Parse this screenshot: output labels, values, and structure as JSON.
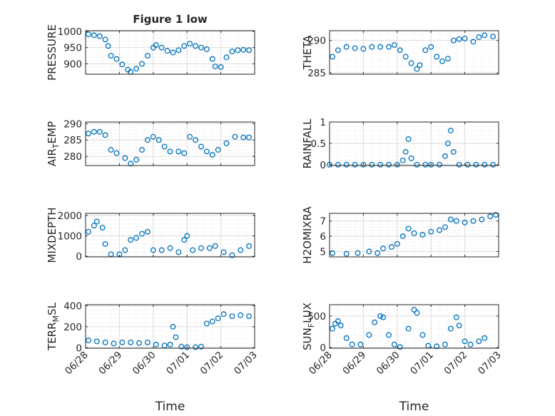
{
  "figure_title": "Figure 1 low",
  "colors": {
    "marker": "#0072BD",
    "axis": "#262626",
    "grid": "#dcdcdc"
  },
  "x_tick_labels": [
    "06/28",
    "06/29",
    "06/30",
    "07/01",
    "07/02",
    "07/03"
  ],
  "chart_data": [
    {
      "type": "scatter",
      "panel": "left-1",
      "title": "Figure 1 low",
      "ylabel_main": "PRESSURE",
      "ylabel_sub": "",
      "ylabel_tail": "",
      "xlim": [
        "06/28",
        "07/03"
      ],
      "ylim": [
        868,
        1002
      ],
      "yticks": [
        900,
        950,
        1000
      ],
      "ytick_labels": [
        "900",
        "950",
        "1000"
      ],
      "show_xticklabels": false,
      "xlabel": "",
      "grid": true,
      "minor_grid": true,
      "points": [
        [
          "06/28 02:00",
          991
        ],
        [
          "06/28 06:00",
          988
        ],
        [
          "06/28 10:00",
          985
        ],
        [
          "06/28 14:00",
          975
        ],
        [
          "06/28 16:00",
          955
        ],
        [
          "06/28 18:00",
          925
        ],
        [
          "06/28 22:00",
          915
        ],
        [
          "06/29 02:00",
          898
        ],
        [
          "06/29 06:00",
          882
        ],
        [
          "06/29 08:00",
          875
        ],
        [
          "06/29 12:00",
          885
        ],
        [
          "06/29 16:00",
          900
        ],
        [
          "06/29 20:00",
          925
        ],
        [
          "06/30 00:00",
          950
        ],
        [
          "06/30 02:00",
          958
        ],
        [
          "06/30 06:00",
          950
        ],
        [
          "06/30 10:00",
          940
        ],
        [
          "06/30 14:00",
          935
        ],
        [
          "06/30 18:00",
          942
        ],
        [
          "06/30 22:00",
          955
        ],
        [
          "07/01 02:00",
          962
        ],
        [
          "07/01 06:00",
          955
        ],
        [
          "07/01 10:00",
          950
        ],
        [
          "07/01 14:00",
          945
        ],
        [
          "07/01 18:00",
          915
        ],
        [
          "07/01 20:00",
          892
        ],
        [
          "07/02 00:00",
          890
        ],
        [
          "07/02 04:00",
          920
        ],
        [
          "07/02 08:00",
          938
        ],
        [
          "07/02 12:00",
          942
        ],
        [
          "07/02 16:00",
          943
        ],
        [
          "07/02 20:00",
          942
        ]
      ]
    },
    {
      "type": "scatter",
      "panel": "right-1",
      "title": "",
      "ylabel_main": "THETA",
      "ylabel_sub": "",
      "ylabel_tail": "",
      "xlim": [
        "06/28",
        "07/03"
      ],
      "ylim": [
        284.8,
        291.5
      ],
      "yticks": [
        285,
        290
      ],
      "ytick_labels": [
        "285",
        "290"
      ],
      "show_xticklabels": false,
      "xlabel": "",
      "grid": true,
      "minor_grid": true,
      "points": [
        [
          "06/28 02:00",
          287.5
        ],
        [
          "06/28 06:00",
          288.5
        ],
        [
          "06/28 12:00",
          289
        ],
        [
          "06/28 18:00",
          288.8
        ],
        [
          "06/29 00:00",
          288.7
        ],
        [
          "06/29 06:00",
          289
        ],
        [
          "06/29 12:00",
          289
        ],
        [
          "06/29 18:00",
          289
        ],
        [
          "06/29 22:00",
          289.3
        ],
        [
          "06/30 02:00",
          288.5
        ],
        [
          "06/30 06:00",
          287.5
        ],
        [
          "06/30 10:00",
          286.5
        ],
        [
          "06/30 14:00",
          285.6
        ],
        [
          "06/30 16:00",
          286.2
        ],
        [
          "06/30 20:00",
          288.5
        ],
        [
          "07/01 00:00",
          289
        ],
        [
          "07/01 04:00",
          287.5
        ],
        [
          "07/01 08:00",
          286.8
        ],
        [
          "07/01 12:00",
          287.2
        ],
        [
          "07/01 16:00",
          290
        ],
        [
          "07/01 20:00",
          290.2
        ],
        [
          "07/02 00:00",
          290.3
        ],
        [
          "07/02 06:00",
          289.8
        ],
        [
          "07/02 10:00",
          290.5
        ],
        [
          "07/02 14:00",
          290.8
        ],
        [
          "07/02 20:00",
          290.6
        ]
      ]
    },
    {
      "type": "scatter",
      "panel": "left-2",
      "title": "",
      "ylabel_main": "AIR",
      "ylabel_sub": "T",
      "ylabel_tail": "EMP",
      "xlim": [
        "06/28",
        "07/03"
      ],
      "ylim": [
        277.2,
        290.5
      ],
      "yticks": [
        280,
        285,
        290
      ],
      "ytick_labels": [
        "280",
        "285",
        "290"
      ],
      "show_xticklabels": false,
      "xlabel": "",
      "grid": true,
      "minor_grid": true,
      "points": [
        [
          "06/28 02:00",
          287
        ],
        [
          "06/28 06:00",
          287.5
        ],
        [
          "06/28 10:00",
          287.5
        ],
        [
          "06/28 14:00",
          286.5
        ],
        [
          "06/28 18:00",
          282
        ],
        [
          "06/28 22:00",
          281
        ],
        [
          "06/29 04:00",
          279.5
        ],
        [
          "06/29 08:00",
          277.8
        ],
        [
          "06/29 12:00",
          279
        ],
        [
          "06/29 16:00",
          282
        ],
        [
          "06/29 20:00",
          285
        ],
        [
          "06/30 00:00",
          286
        ],
        [
          "06/30 04:00",
          285
        ],
        [
          "06/30 08:00",
          283
        ],
        [
          "06/30 12:00",
          281.5
        ],
        [
          "06/30 18:00",
          281.5
        ],
        [
          "06/30 22:00",
          281
        ],
        [
          "07/01 02:00",
          286
        ],
        [
          "07/01 06:00",
          285
        ],
        [
          "07/01 10:00",
          283
        ],
        [
          "07/01 14:00",
          281.5
        ],
        [
          "07/01 18:00",
          280.5
        ],
        [
          "07/01 22:00",
          282
        ],
        [
          "07/02 04:00",
          284
        ],
        [
          "07/02 10:00",
          286
        ],
        [
          "07/02 16:00",
          285.8
        ],
        [
          "07/02 20:00",
          285.8
        ]
      ]
    },
    {
      "type": "scatter",
      "panel": "right-2",
      "title": "",
      "ylabel_main": "RAINFALL",
      "ylabel_sub": "",
      "ylabel_tail": "",
      "xlim": [
        "06/28",
        "07/03"
      ],
      "ylim": [
        -0.02,
        1.0
      ],
      "yticks": [
        0,
        0.5,
        1
      ],
      "ytick_labels": [
        "0",
        "0.5",
        "1"
      ],
      "show_xticklabels": false,
      "xlabel": "",
      "grid": true,
      "minor_grid": true,
      "points": [
        [
          "06/28 00:00",
          0
        ],
        [
          "06/28 06:00",
          0
        ],
        [
          "06/28 12:00",
          0
        ],
        [
          "06/28 18:00",
          0
        ],
        [
          "06/29 00:00",
          0
        ],
        [
          "06/29 06:00",
          0
        ],
        [
          "06/29 12:00",
          0
        ],
        [
          "06/29 18:00",
          0
        ],
        [
          "06/30 00:00",
          0
        ],
        [
          "06/30 04:00",
          0.1
        ],
        [
          "06/30 06:00",
          0.3
        ],
        [
          "06/30 08:00",
          0.6
        ],
        [
          "06/30 10:00",
          0.15
        ],
        [
          "06/30 14:00",
          0
        ],
        [
          "06/30 20:00",
          0
        ],
        [
          "07/01 00:00",
          0
        ],
        [
          "07/01 06:00",
          0
        ],
        [
          "07/01 10:00",
          0.2
        ],
        [
          "07/01 12:00",
          0.5
        ],
        [
          "07/01 14:00",
          0.8
        ],
        [
          "07/01 16:00",
          0.3
        ],
        [
          "07/01 20:00",
          0
        ],
        [
          "07/02 02:00",
          0
        ],
        [
          "07/02 08:00",
          0
        ],
        [
          "07/02 14:00",
          0
        ],
        [
          "07/02 20:00",
          0
        ]
      ]
    },
    {
      "type": "scatter",
      "panel": "left-3",
      "title": "",
      "ylabel_main": "MIXDEPTH",
      "ylabel_sub": "",
      "ylabel_tail": "",
      "xlim": [
        "06/28",
        "07/03"
      ],
      "ylim": [
        -30,
        2100
      ],
      "yticks": [
        0,
        1000,
        2000
      ],
      "ytick_labels": [
        "0",
        "1000",
        "2000"
      ],
      "show_xticklabels": false,
      "xlabel": "",
      "grid": true,
      "minor_grid": true,
      "points": [
        [
          "06/28 02:00",
          1200
        ],
        [
          "06/28 06:00",
          1500
        ],
        [
          "06/28 08:00",
          1700
        ],
        [
          "06/28 12:00",
          1400
        ],
        [
          "06/28 14:00",
          600
        ],
        [
          "06/28 18:00",
          100
        ],
        [
          "06/29 00:00",
          100
        ],
        [
          "06/29 04:00",
          300
        ],
        [
          "06/29 08:00",
          800
        ],
        [
          "06/29 12:00",
          900
        ],
        [
          "06/29 16:00",
          1100
        ],
        [
          "06/29 20:00",
          1200
        ],
        [
          "06/30 00:00",
          300
        ],
        [
          "06/30 06:00",
          300
        ],
        [
          "06/30 12:00",
          400
        ],
        [
          "06/30 18:00",
          200
        ],
        [
          "06/30 22:00",
          800
        ],
        [
          "07/01 00:00",
          1000
        ],
        [
          "07/01 04:00",
          300
        ],
        [
          "07/01 10:00",
          400
        ],
        [
          "07/01 16:00",
          400
        ],
        [
          "07/01 20:00",
          500
        ],
        [
          "07/02 02:00",
          200
        ],
        [
          "07/02 08:00",
          50
        ],
        [
          "07/02 14:00",
          300
        ],
        [
          "07/02 20:00",
          500
        ]
      ]
    },
    {
      "type": "scatter",
      "panel": "right-3",
      "title": "",
      "ylabel_main": "H2OMIXRA",
      "ylabel_sub": "",
      "ylabel_tail": "",
      "xlim": [
        "06/28",
        "07/03"
      ],
      "ylim": [
        4.65,
        7.5
      ],
      "yticks": [
        5,
        6,
        7
      ],
      "ytick_labels": [
        "5",
        "6",
        "7"
      ],
      "show_xticklabels": false,
      "xlabel": "",
      "grid": true,
      "minor_grid": true,
      "points": [
        [
          "06/28 02:00",
          4.9
        ],
        [
          "06/28 12:00",
          4.85
        ],
        [
          "06/28 20:00",
          4.9
        ],
        [
          "06/29 04:00",
          5.0
        ],
        [
          "06/29 10:00",
          4.9
        ],
        [
          "06/29 14:00",
          5.2
        ],
        [
          "06/29 20:00",
          5.3
        ],
        [
          "06/30 00:00",
          5.5
        ],
        [
          "06/30 04:00",
          6.0
        ],
        [
          "06/30 08:00",
          6.5
        ],
        [
          "06/30 12:00",
          6.2
        ],
        [
          "06/30 18:00",
          6.1
        ],
        [
          "07/01 00:00",
          6.3
        ],
        [
          "07/01 06:00",
          6.4
        ],
        [
          "07/01 10:00",
          6.6
        ],
        [
          "07/01 14:00",
          7.1
        ],
        [
          "07/01 18:00",
          7.0
        ],
        [
          "07/02 00:00",
          6.9
        ],
        [
          "07/02 06:00",
          7.0
        ],
        [
          "07/02 12:00",
          7.1
        ],
        [
          "07/02 18:00",
          7.3
        ],
        [
          "07/02 22:00",
          7.4
        ]
      ]
    },
    {
      "type": "scatter",
      "panel": "left-4",
      "title": "",
      "ylabel_main": "TERR",
      "ylabel_sub": "M",
      "ylabel_tail": "SL",
      "xlim": [
        "06/28",
        "07/03"
      ],
      "ylim": [
        -5,
        410
      ],
      "yticks": [
        0,
        200,
        400
      ],
      "ytick_labels": [
        "0",
        "200",
        "400"
      ],
      "show_xticklabels": true,
      "xlabel": "Time",
      "grid": true,
      "minor_grid": true,
      "points": [
        [
          "06/28 02:00",
          70
        ],
        [
          "06/28 08:00",
          60
        ],
        [
          "06/28 14:00",
          50
        ],
        [
          "06/28 20:00",
          40
        ],
        [
          "06/29 02:00",
          50
        ],
        [
          "06/29 08:00",
          50
        ],
        [
          "06/29 14:00",
          45
        ],
        [
          "06/29 20:00",
          50
        ],
        [
          "06/30 02:00",
          30
        ],
        [
          "06/30 08:00",
          20
        ],
        [
          "06/30 12:00",
          30
        ],
        [
          "06/30 14:00",
          200
        ],
        [
          "06/30 16:00",
          100
        ],
        [
          "06/30 20:00",
          10
        ],
        [
          "07/01 00:00",
          5
        ],
        [
          "07/01 06:00",
          5
        ],
        [
          "07/01 10:00",
          10
        ],
        [
          "07/01 14:00",
          230
        ],
        [
          "07/01 18:00",
          250
        ],
        [
          "07/01 22:00",
          280
        ],
        [
          "07/02 02:00",
          320
        ],
        [
          "07/02 08:00",
          300
        ],
        [
          "07/02 14:00",
          310
        ],
        [
          "07/02 20:00",
          300
        ]
      ]
    },
    {
      "type": "scatter",
      "panel": "right-4",
      "title": "",
      "ylabel_main": "SUN",
      "ylabel_sub": "F",
      "ylabel_tail": "LUX",
      "xlim": [
        "06/28",
        "07/03"
      ],
      "ylim": [
        -10,
        680
      ],
      "yticks": [
        0,
        500
      ],
      "ytick_labels": [
        "0",
        "500"
      ],
      "show_xticklabels": true,
      "xlabel": "Time",
      "grid": true,
      "minor_grid": true,
      "points": [
        [
          "06/28 02:00",
          300
        ],
        [
          "06/28 04:00",
          380
        ],
        [
          "06/28 06:00",
          420
        ],
        [
          "06/28 08:00",
          350
        ],
        [
          "06/28 12:00",
          150
        ],
        [
          "06/28 16:00",
          50
        ],
        [
          "06/28 22:00",
          50
        ],
        [
          "06/29 04:00",
          200
        ],
        [
          "06/29 08:00",
          400
        ],
        [
          "06/29 12:00",
          500
        ],
        [
          "06/29 14:00",
          480
        ],
        [
          "06/29 18:00",
          200
        ],
        [
          "06/29 22:00",
          50
        ],
        [
          "06/30 02:00",
          10
        ],
        [
          "06/30 08:00",
          300
        ],
        [
          "06/30 12:00",
          600
        ],
        [
          "06/30 14:00",
          550
        ],
        [
          "06/30 18:00",
          200
        ],
        [
          "06/30 22:00",
          30
        ],
        [
          "07/01 04:00",
          20
        ],
        [
          "07/01 10:00",
          50
        ],
        [
          "07/01 14:00",
          300
        ],
        [
          "07/01 18:00",
          480
        ],
        [
          "07/01 20:00",
          350
        ],
        [
          "07/02 00:00",
          100
        ],
        [
          "07/02 04:00",
          50
        ],
        [
          "07/02 10:00",
          100
        ],
        [
          "07/02 14:00",
          150
        ]
      ]
    }
  ]
}
